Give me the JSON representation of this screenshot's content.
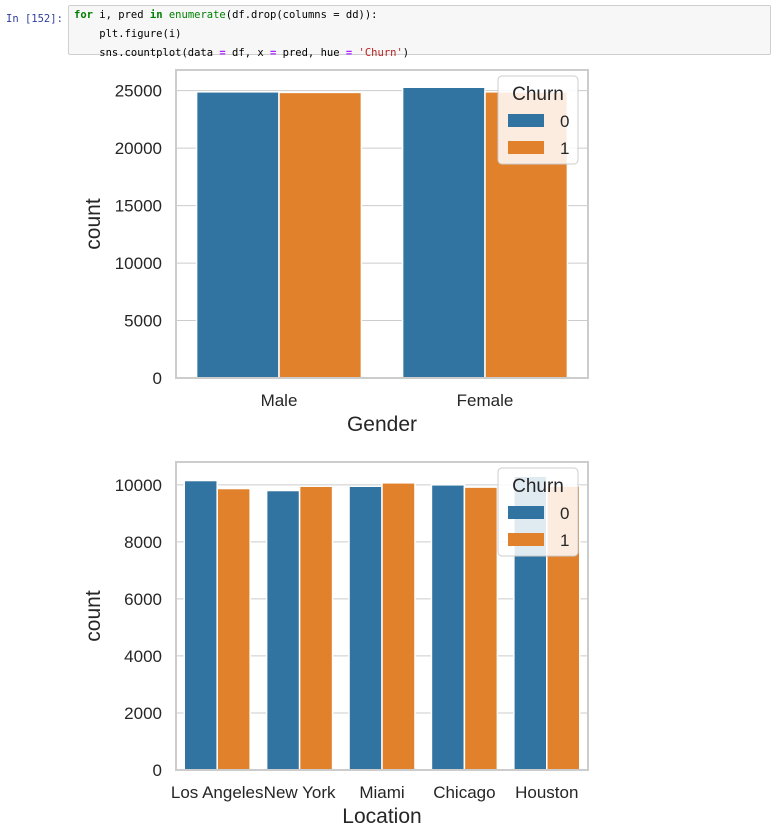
{
  "cell": {
    "prompt": "In [152]:",
    "code": {
      "line1": {
        "kw_for": "for",
        "vars": " i, pred ",
        "kw_in": "in",
        "fn": "enumerate",
        "rest": "(df.drop(columns = dd)):"
      },
      "line2": "    plt.figure(i)",
      "line3": {
        "pre": "    sns.countplot(data ",
        "eq1": "=",
        "mid1": " df, x ",
        "eq2": "=",
        "mid2": " pred, hue ",
        "eq3": "=",
        "sp": " ",
        "str": "'Churn'",
        "post": ")"
      }
    }
  },
  "colors": {
    "series0": "#3274a1",
    "series1": "#e1812c",
    "grid": "#cccccc",
    "spine": "#cccccc"
  },
  "chart_data": [
    {
      "type": "bar",
      "categories": [
        "Male",
        "Female"
      ],
      "series": [
        {
          "name": "0",
          "values": [
            24900,
            25300
          ]
        },
        {
          "name": "1",
          "values": [
            24850,
            24900
          ]
        }
      ],
      "xlabel": "Gender",
      "ylabel": "count",
      "ylim": [
        0,
        26800
      ],
      "yticks": [
        0,
        5000,
        10000,
        15000,
        20000,
        25000
      ],
      "legend": {
        "title": "Churn",
        "position": "top-right"
      },
      "grid": true
    },
    {
      "type": "bar",
      "categories": [
        "Los Angeles",
        "New York",
        "Miami",
        "Chicago",
        "Houston"
      ],
      "series": [
        {
          "name": "0",
          "values": [
            10150,
            9800,
            9950,
            10000,
            10300
          ]
        },
        {
          "name": "1",
          "values": [
            9870,
            9950,
            10070,
            9920,
            9960
          ]
        }
      ],
      "xlabel": "Location",
      "ylabel": "count",
      "ylim": [
        0,
        10800
      ],
      "yticks": [
        0,
        2000,
        4000,
        6000,
        8000,
        10000
      ],
      "legend": {
        "title": "Churn",
        "position": "top-right"
      },
      "grid": true
    }
  ]
}
